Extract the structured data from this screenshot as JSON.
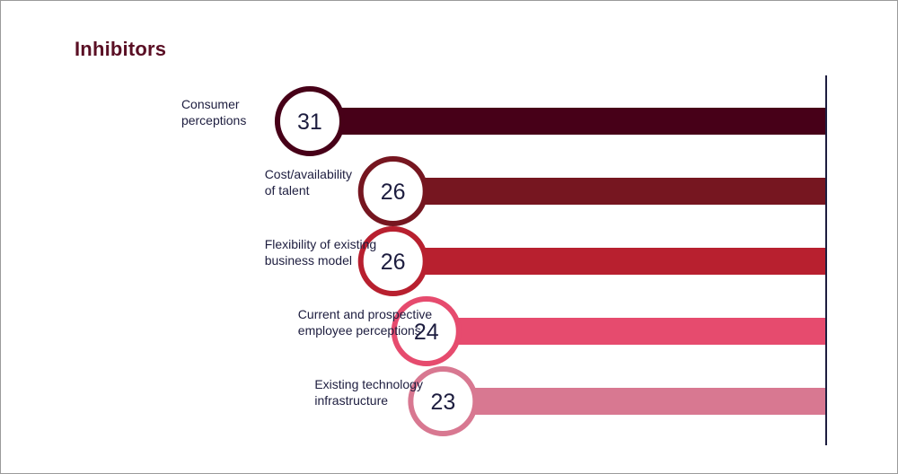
{
  "chart_data": {
    "type": "bar",
    "orientation": "horizontal",
    "title": "Inhibitors",
    "categories": [
      "Consumer perceptions",
      "Cost/availability of talent",
      "Flexibility of existing business model",
      "Current and prospective employee perceptions",
      "Existing technology infrastructure"
    ],
    "label_lines": [
      [
        "Consumer",
        "perceptions"
      ],
      [
        "Cost/availability",
        "of talent"
      ],
      [
        "Flexibility of existing",
        "business model"
      ],
      [
        "Current and prospective",
        "employee perceptions"
      ],
      [
        "Existing technology",
        "infrastructure"
      ]
    ],
    "values": [
      31,
      26,
      26,
      24,
      23
    ],
    "data_labels": [
      "31",
      "26",
      "26",
      "24",
      "23"
    ],
    "colors": [
      "#470018",
      "#761620",
      "#b8202f",
      "#e64b6e",
      "#d87891"
    ],
    "xlim": [
      0,
      36
    ],
    "xlabel": "",
    "ylabel": "",
    "grid": false,
    "legend": "none"
  }
}
